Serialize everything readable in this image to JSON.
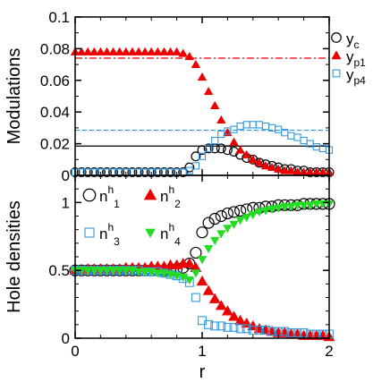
{
  "chart_data": [
    {
      "type": "scatter",
      "panel": "top",
      "ylabel": "Modulations",
      "xlabel": "",
      "xlim": [
        0,
        2
      ],
      "ylim": [
        0,
        0.1
      ],
      "yticks": [
        "0",
        "0.02",
        "0.04",
        "0.06",
        "0.08",
        "0.1"
      ],
      "xticks": [
        "",
        "",
        ""
      ],
      "legend_position": "top-right",
      "reference_lines": [
        {
          "y": 0.074,
          "color": "#dd0000",
          "style": "dash-dot"
        },
        {
          "y": 0.0285,
          "color": "#3399dd",
          "style": "dashed"
        },
        {
          "y": 0.0185,
          "color": "#000000",
          "style": "solid"
        }
      ],
      "series": [
        {
          "name": "y",
          "sub": "c",
          "marker": "circle-open",
          "color": "#000000",
          "x": [
            0,
            0.05,
            0.1,
            0.15,
            0.2,
            0.25,
            0.3,
            0.35,
            0.4,
            0.45,
            0.5,
            0.55,
            0.6,
            0.65,
            0.7,
            0.75,
            0.8,
            0.85,
            0.9,
            0.95,
            1.0,
            1.05,
            1.1,
            1.15,
            1.2,
            1.25,
            1.3,
            1.35,
            1.4,
            1.45,
            1.5,
            1.55,
            1.6,
            1.65,
            1.7,
            1.75,
            1.8,
            1.85,
            1.9,
            1.95,
            2.0
          ],
          "y": [
            0.002,
            0.002,
            0.002,
            0.002,
            0.002,
            0.002,
            0.002,
            0.002,
            0.002,
            0.002,
            0.002,
            0.002,
            0.002,
            0.002,
            0.002,
            0.002,
            0.002,
            0.002,
            0.005,
            0.012,
            0.016,
            0.017,
            0.017,
            0.017,
            0.016,
            0.015,
            0.013,
            0.011,
            0.01,
            0.008,
            0.007,
            0.006,
            0.005,
            0.004,
            0.004,
            0.003,
            0.003,
            0.002,
            0.002,
            0.002,
            0.002
          ]
        },
        {
          "name": "y",
          "sub": "p1",
          "marker": "triangle-filled",
          "color": "#ee0000",
          "x": [
            0,
            0.05,
            0.1,
            0.15,
            0.2,
            0.25,
            0.3,
            0.35,
            0.4,
            0.45,
            0.5,
            0.55,
            0.6,
            0.65,
            0.7,
            0.75,
            0.8,
            0.85,
            0.9,
            0.95,
            1.0,
            1.05,
            1.1,
            1.15,
            1.2,
            1.25,
            1.3,
            1.35,
            1.4,
            1.45,
            1.5,
            1.55,
            1.6,
            1.65,
            1.7,
            1.75,
            1.8,
            1.85,
            1.9,
            1.95,
            2.0
          ],
          "y": [
            0.078,
            0.078,
            0.078,
            0.078,
            0.078,
            0.078,
            0.078,
            0.078,
            0.078,
            0.078,
            0.078,
            0.078,
            0.078,
            0.078,
            0.078,
            0.078,
            0.078,
            0.077,
            0.075,
            0.07,
            0.062,
            0.053,
            0.044,
            0.035,
            0.027,
            0.021,
            0.016,
            0.013,
            0.01,
            0.008,
            0.006,
            0.005,
            0.004,
            0.003,
            0.003,
            0.002,
            0.002,
            0.002,
            0.002,
            0.002,
            0.002
          ]
        },
        {
          "name": "y",
          "sub": "p4",
          "marker": "square-open",
          "color": "#3399dd",
          "x": [
            0,
            0.05,
            0.1,
            0.15,
            0.2,
            0.25,
            0.3,
            0.35,
            0.4,
            0.45,
            0.5,
            0.55,
            0.6,
            0.65,
            0.7,
            0.75,
            0.8,
            0.85,
            0.9,
            0.95,
            1.0,
            1.05,
            1.1,
            1.15,
            1.2,
            1.25,
            1.3,
            1.35,
            1.4,
            1.45,
            1.5,
            1.55,
            1.6,
            1.65,
            1.7,
            1.75,
            1.8,
            1.85,
            1.9,
            1.95,
            2.0
          ],
          "y": [
            0.002,
            0.002,
            0.002,
            0.002,
            0.002,
            0.002,
            0.002,
            0.002,
            0.002,
            0.002,
            0.002,
            0.002,
            0.002,
            0.002,
            0.002,
            0.002,
            0.002,
            0.002,
            0.003,
            0.006,
            0.012,
            0.017,
            0.022,
            0.026,
            0.028,
            0.029,
            0.031,
            0.032,
            0.032,
            0.032,
            0.031,
            0.03,
            0.029,
            0.027,
            0.025,
            0.024,
            0.022,
            0.02,
            0.018,
            0.017,
            0.016
          ]
        }
      ]
    },
    {
      "type": "scatter",
      "panel": "bottom",
      "ylabel": "Hole densities",
      "xlabel": "r",
      "xlim": [
        0,
        2
      ],
      "ylim": [
        0,
        1.2
      ],
      "yticks": [
        "0",
        "0.5",
        "1"
      ],
      "xticks": [
        "0",
        "1",
        "2"
      ],
      "legend_position": "top-left",
      "series": [
        {
          "name": "n",
          "sup": "h",
          "sub": "1",
          "marker": "circle-open",
          "color": "#000000",
          "x": [
            0,
            0.05,
            0.1,
            0.15,
            0.2,
            0.25,
            0.3,
            0.35,
            0.4,
            0.45,
            0.5,
            0.55,
            0.6,
            0.65,
            0.7,
            0.75,
            0.8,
            0.85,
            0.9,
            0.95,
            1.0,
            1.05,
            1.1,
            1.15,
            1.2,
            1.25,
            1.3,
            1.35,
            1.4,
            1.45,
            1.5,
            1.55,
            1.6,
            1.65,
            1.7,
            1.75,
            1.8,
            1.85,
            1.9,
            1.95,
            2.0
          ],
          "y": [
            0.5,
            0.5,
            0.5,
            0.5,
            0.5,
            0.5,
            0.5,
            0.5,
            0.5,
            0.5,
            0.5,
            0.5,
            0.5,
            0.5,
            0.5,
            0.5,
            0.51,
            0.52,
            0.55,
            0.63,
            0.78,
            0.85,
            0.88,
            0.9,
            0.92,
            0.93,
            0.94,
            0.95,
            0.96,
            0.96,
            0.97,
            0.97,
            0.98,
            0.98,
            0.98,
            0.98,
            0.99,
            0.99,
            0.99,
            0.99,
            0.99
          ]
        },
        {
          "name": "n",
          "sup": "h",
          "sub": "2",
          "marker": "triangle-filled",
          "color": "#ee0000",
          "x": [
            0,
            0.05,
            0.1,
            0.15,
            0.2,
            0.25,
            0.3,
            0.35,
            0.4,
            0.45,
            0.5,
            0.55,
            0.6,
            0.65,
            0.7,
            0.75,
            0.8,
            0.85,
            0.9,
            0.95,
            1.0,
            1.05,
            1.1,
            1.15,
            1.2,
            1.25,
            1.3,
            1.35,
            1.4,
            1.45,
            1.5,
            1.55,
            1.6,
            1.65,
            1.7,
            1.75,
            1.8,
            1.85,
            1.9,
            1.95,
            2.0
          ],
          "y": [
            0.5,
            0.5,
            0.51,
            0.51,
            0.51,
            0.51,
            0.51,
            0.51,
            0.52,
            0.52,
            0.52,
            0.52,
            0.53,
            0.53,
            0.53,
            0.54,
            0.54,
            0.55,
            0.55,
            0.52,
            0.42,
            0.35,
            0.29,
            0.24,
            0.2,
            0.16,
            0.13,
            0.11,
            0.09,
            0.07,
            0.06,
            0.05,
            0.04,
            0.04,
            0.03,
            0.03,
            0.02,
            0.02,
            0.02,
            0.02,
            0.01
          ]
        },
        {
          "name": "n",
          "sup": "h",
          "sub": "3",
          "marker": "square-open",
          "color": "#3399dd",
          "x": [
            0,
            0.05,
            0.1,
            0.15,
            0.2,
            0.25,
            0.3,
            0.35,
            0.4,
            0.45,
            0.5,
            0.55,
            0.6,
            0.65,
            0.7,
            0.75,
            0.8,
            0.85,
            0.9,
            0.95,
            1.0,
            1.05,
            1.1,
            1.15,
            1.2,
            1.25,
            1.3,
            1.35,
            1.4,
            1.45,
            1.5,
            1.55,
            1.6,
            1.65,
            1.7,
            1.75,
            1.8,
            1.85,
            1.9,
            1.95,
            2.0
          ],
          "y": [
            0.5,
            0.5,
            0.5,
            0.5,
            0.5,
            0.5,
            0.5,
            0.5,
            0.5,
            0.5,
            0.5,
            0.49,
            0.49,
            0.49,
            0.48,
            0.47,
            0.46,
            0.44,
            0.41,
            0.3,
            0.13,
            0.1,
            0.09,
            0.09,
            0.08,
            0.08,
            0.07,
            0.07,
            0.06,
            0.06,
            0.06,
            0.05,
            0.05,
            0.05,
            0.04,
            0.04,
            0.04,
            0.03,
            0.03,
            0.03,
            0.03
          ]
        },
        {
          "name": "n",
          "sup": "h",
          "sub": "4",
          "marker": "triangle-down-filled",
          "color": "#22dd22",
          "x": [
            0,
            0.05,
            0.1,
            0.15,
            0.2,
            0.25,
            0.3,
            0.35,
            0.4,
            0.45,
            0.5,
            0.55,
            0.6,
            0.65,
            0.7,
            0.75,
            0.8,
            0.85,
            0.9,
            0.95,
            1.0,
            1.05,
            1.1,
            1.15,
            1.2,
            1.25,
            1.3,
            1.35,
            1.4,
            1.45,
            1.5,
            1.55,
            1.6,
            1.65,
            1.7,
            1.75,
            1.8,
            1.85,
            1.9,
            1.95,
            2.0
          ],
          "y": [
            0.5,
            0.5,
            0.5,
            0.5,
            0.5,
            0.5,
            0.5,
            0.5,
            0.5,
            0.5,
            0.49,
            0.49,
            0.49,
            0.48,
            0.48,
            0.47,
            0.46,
            0.45,
            0.43,
            0.48,
            0.58,
            0.66,
            0.72,
            0.77,
            0.81,
            0.84,
            0.87,
            0.89,
            0.91,
            0.93,
            0.94,
            0.95,
            0.96,
            0.97,
            0.97,
            0.98,
            0.98,
            0.98,
            0.99,
            0.99,
            0.99
          ]
        }
      ]
    }
  ]
}
